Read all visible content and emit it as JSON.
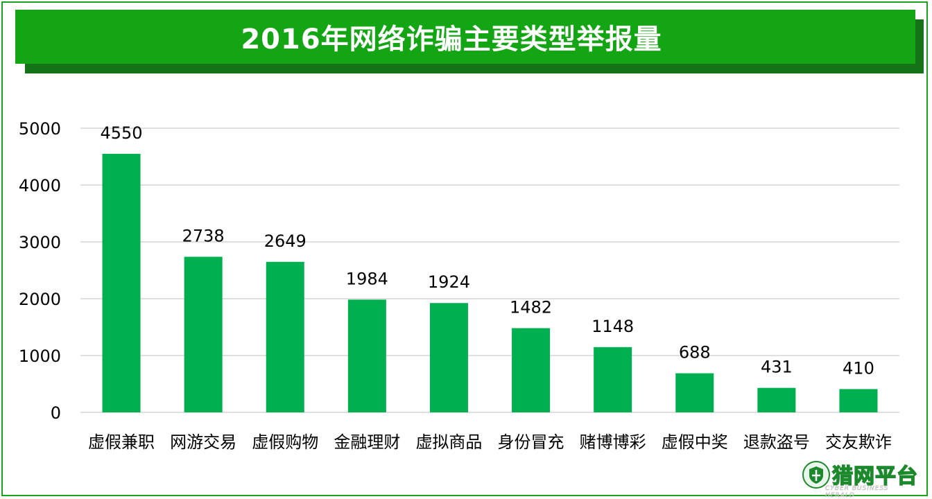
{
  "chart_data": {
    "type": "bar",
    "title": "2016年网络诈骗主要类型举报量",
    "categories": [
      "虚假兼职",
      "网游交易",
      "虚假购物",
      "金融理财",
      "虚拟商品",
      "身份冒充",
      "赌博博彩",
      "虚假中奖",
      "退款盗号",
      "交友欺诈"
    ],
    "values": [
      4550,
      2738,
      2649,
      1984,
      1924,
      1482,
      1148,
      688,
      431,
      410
    ],
    "ylim": [
      0,
      5000
    ],
    "yticks": [
      0,
      1000,
      2000,
      3000,
      4000,
      5000
    ],
    "grid": true,
    "legend": "none",
    "colors": {
      "bar": "#00b050",
      "grid": "#bfbfbf",
      "banner": "#14a514",
      "banner_shadow": "#137316",
      "frame": "#19a21c"
    }
  },
  "logo": {
    "text": "猎网平台",
    "sub": "CYBER BUSINESS HERALD",
    "icon": "shield-globe-icon"
  }
}
